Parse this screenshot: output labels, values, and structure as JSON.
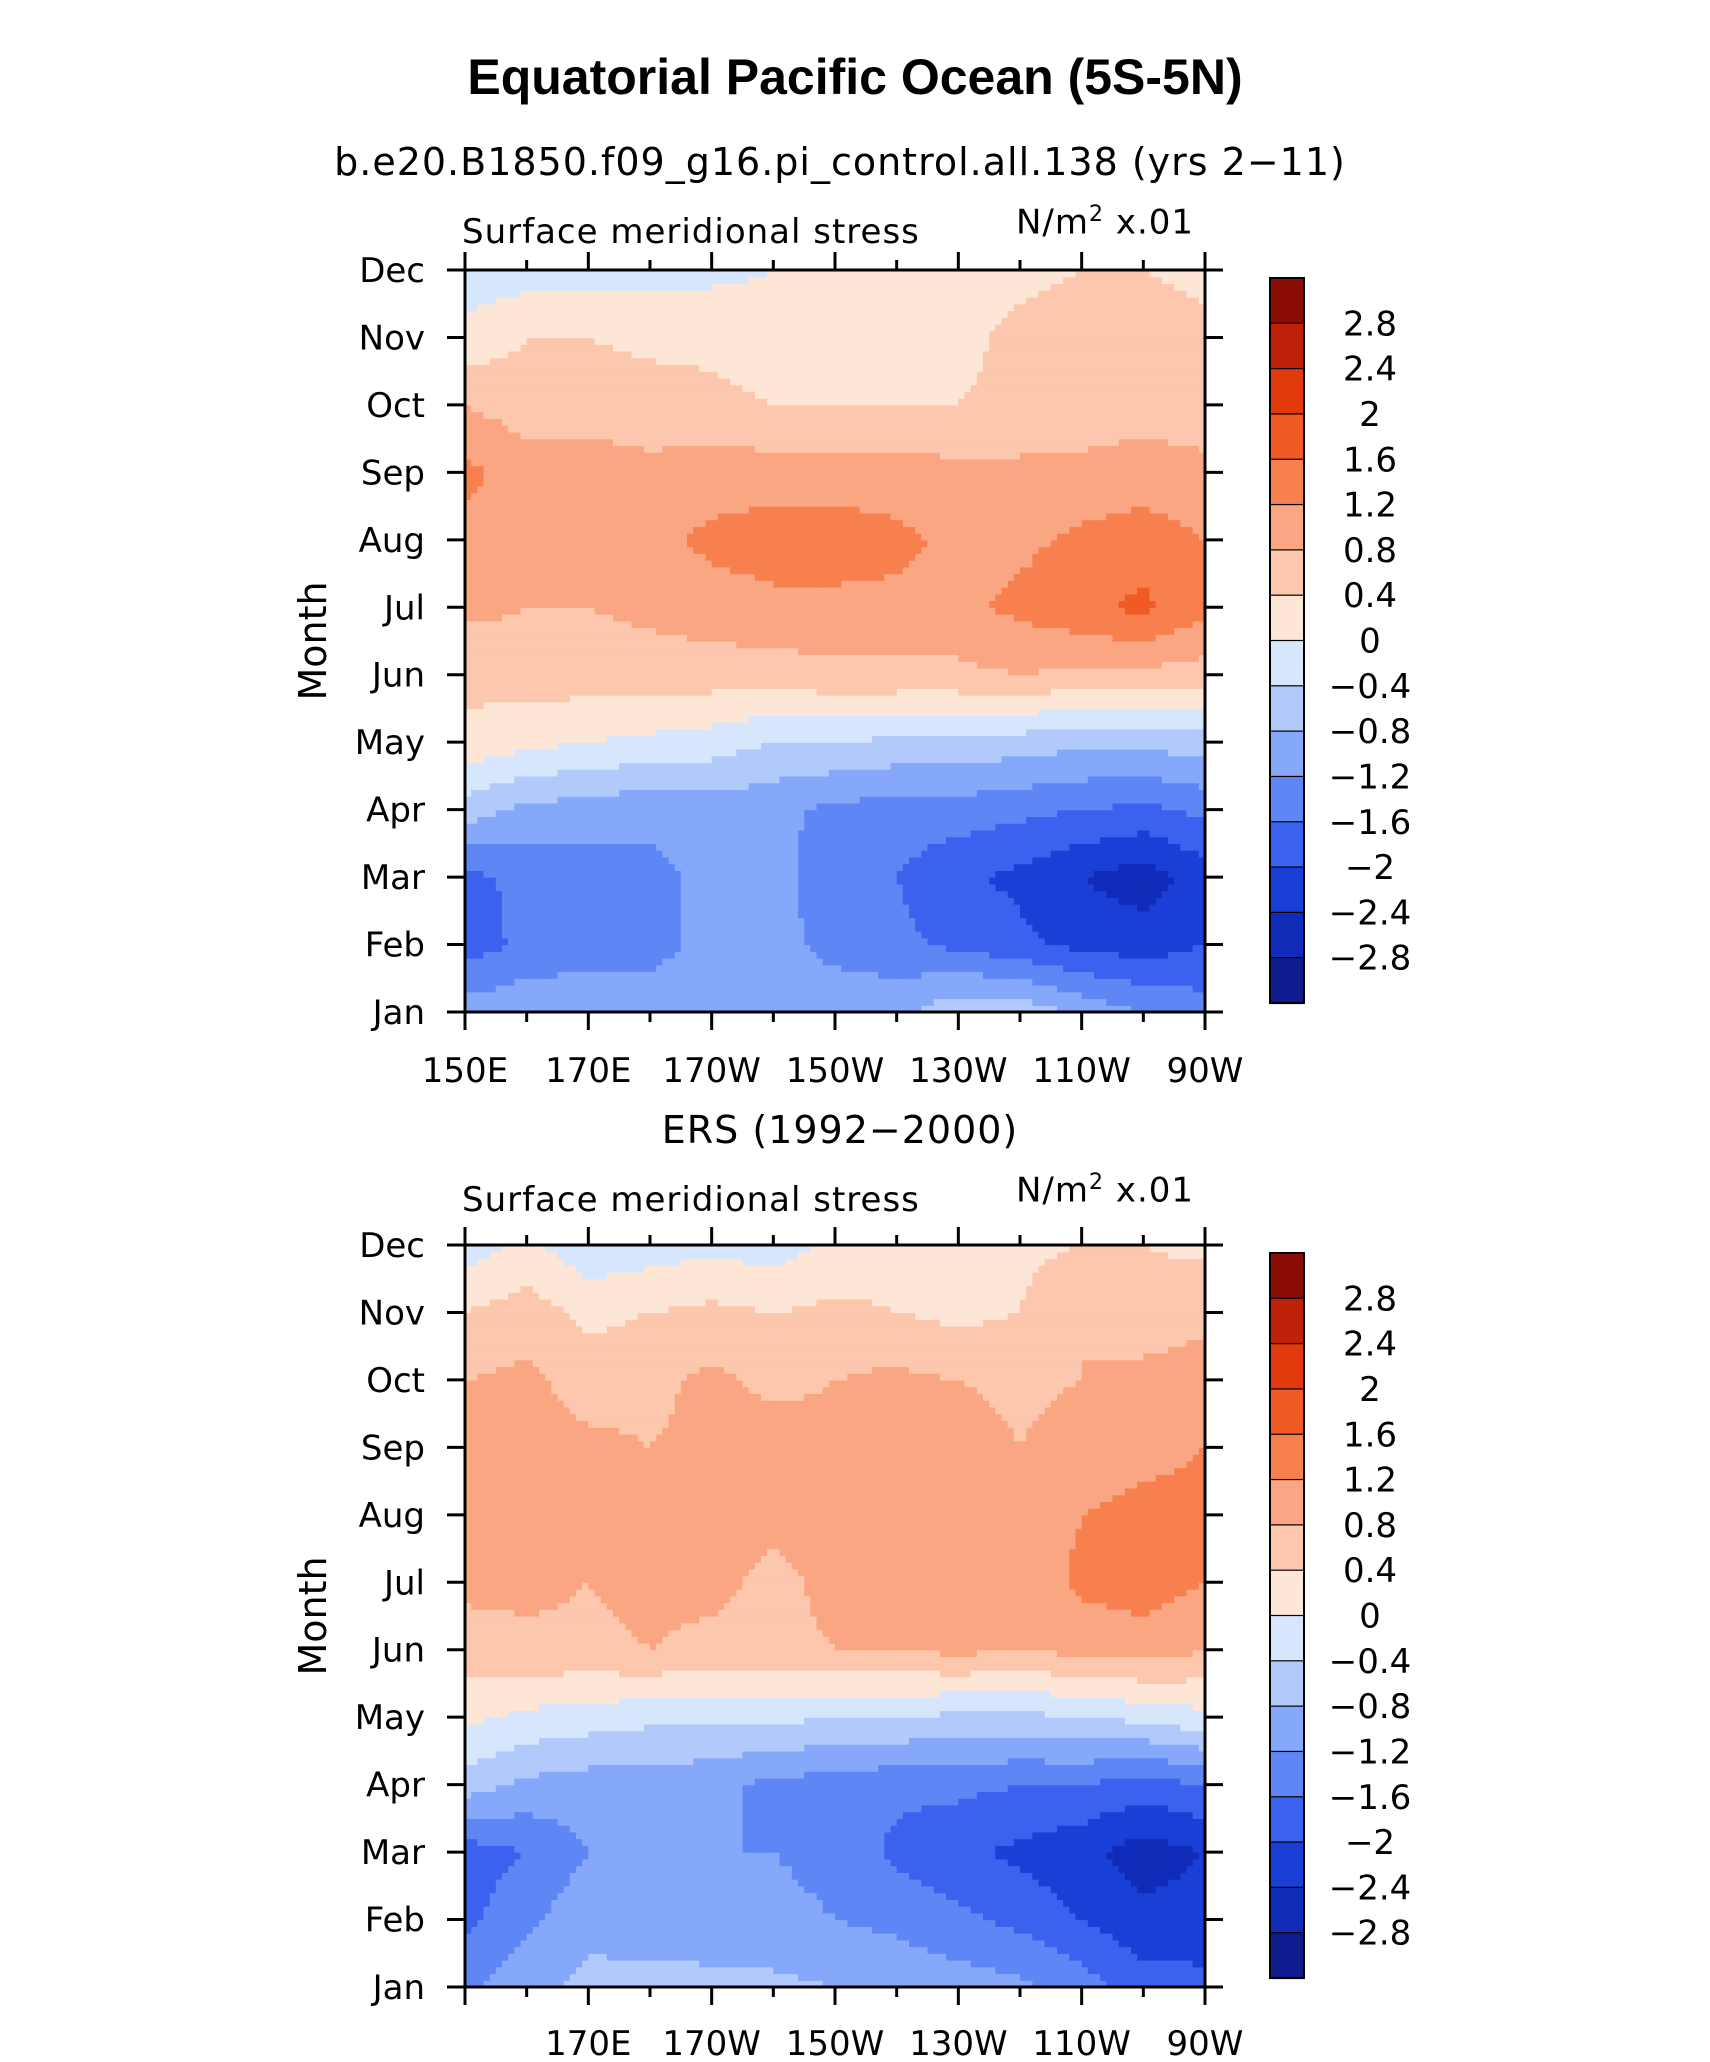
{
  "figure": {
    "title": "Equatorial Pacific Ocean (5S-5N)"
  },
  "colors": {
    "levels": [
      "-2.8",
      "-2.4",
      "-2",
      "-1.6",
      "-1.2",
      "-0.8",
      "-0.4",
      "0",
      "0.4",
      "0.8",
      "1.2",
      "1.6",
      "2",
      "2.4",
      "2.8"
    ],
    "fills": [
      "#0d1b8e",
      "#0f2bb8",
      "#1a3fd6",
      "#3b62ee",
      "#5f86f5",
      "#86a8fa",
      "#b2c9fb",
      "#d6e6fc",
      "#fde6d6",
      "#fcc7ac",
      "#fba683",
      "#f8804f",
      "#f05a24",
      "#e23a0c",
      "#bf2008",
      "#8c0b05"
    ]
  },
  "panels": [
    {
      "subtitle": "b.e20.B1850.f09_g16.pi_control.all.138 (yrs 2−11)",
      "left_label": "Surface meridional stress",
      "units": "N/m",
      "units_sup": "2",
      "units_scale": "x.01",
      "ylabel": "Month",
      "xticklabels": [
        "150E",
        "170E",
        "170W",
        "150W",
        "130W",
        "110W",
        "90W"
      ],
      "yticklabels": [
        "Jan",
        "Feb",
        "Mar",
        "Apr",
        "May",
        "Jun",
        "Jul",
        "Aug",
        "Sep",
        "Oct",
        "Nov",
        "Dec"
      ],
      "colorbar_labels": [
        "2.8",
        "2.4",
        "2",
        "1.6",
        "1.2",
        "0.8",
        "0.4",
        "0",
        "−0.4",
        "−0.8",
        "−1.2",
        "−1.6",
        "−2",
        "−2.4",
        "−2.8"
      ]
    },
    {
      "subtitle": "ERS (1992−2000)",
      "left_label": "Surface meridional stress",
      "units": "N/m",
      "units_sup": "2",
      "units_scale": "x.01",
      "ylabel": "Month",
      "xticklabels": [
        "170E",
        "170W",
        "150W",
        "130W",
        "110W",
        "90W"
      ],
      "yticklabels": [
        "Jan",
        "Feb",
        "Mar",
        "Apr",
        "May",
        "Jun",
        "Jul",
        "Aug",
        "Sep",
        "Oct",
        "Nov",
        "Dec"
      ],
      "colorbar_labels": [
        "2.8",
        "2.4",
        "2",
        "1.6",
        "1.2",
        "0.8",
        "0.4",
        "0",
        "−0.4",
        "−0.8",
        "−1.2",
        "−1.6",
        "−2",
        "−2.4",
        "−2.8"
      ]
    }
  ],
  "chart_data": [
    {
      "type": "heatmap",
      "title": "Surface meridional stress",
      "xlabel": "",
      "ylabel": "Month",
      "x": [
        "150E",
        "160E",
        "170E",
        "180",
        "170W",
        "160W",
        "150W",
        "140W",
        "130W",
        "120W",
        "110W",
        "100W",
        "90W"
      ],
      "y": [
        "Jan",
        "Feb",
        "Mar",
        "Apr",
        "May",
        "Jun",
        "Jul",
        "Aug",
        "Sep",
        "Oct",
        "Nov",
        "Dec"
      ],
      "values": [
        [
          -1.0,
          -0.9,
          -0.9,
          -0.9,
          -0.8,
          -0.8,
          -0.8,
          -0.9,
          -0.5,
          -0.5,
          -0.9,
          -1.2,
          -1.4
        ],
        [
          -1.8,
          -1.5,
          -1.4,
          -1.4,
          -1.0,
          -1.0,
          -1.4,
          -1.5,
          -1.7,
          -1.9,
          -2.1,
          -2.2,
          -2.0
        ],
        [
          -1.7,
          -1.5,
          -1.4,
          -1.3,
          -1.1,
          -1.0,
          -1.5,
          -1.6,
          -1.9,
          -2.1,
          -2.4,
          -2.6,
          -2.2
        ],
        [
          -0.6,
          -0.9,
          -1.0,
          -1.1,
          -1.0,
          -1.1,
          -1.3,
          -1.4,
          -1.4,
          -1.5,
          -1.6,
          -1.7,
          -1.5
        ],
        [
          0.3,
          0.1,
          0.0,
          -0.1,
          -0.2,
          -0.4,
          -0.4,
          -0.5,
          -0.5,
          -0.6,
          -0.7,
          -0.7,
          -0.6
        ],
        [
          0.5,
          0.6,
          0.6,
          0.6,
          0.6,
          0.6,
          0.7,
          0.7,
          0.7,
          0.8,
          0.7,
          0.7,
          0.6
        ],
        [
          0.9,
          0.8,
          0.8,
          0.9,
          1.0,
          1.1,
          1.1,
          1.1,
          1.1,
          1.3,
          1.5,
          1.7,
          1.3
        ],
        [
          1.1,
          1.0,
          1.0,
          1.1,
          1.3,
          1.4,
          1.4,
          1.3,
          1.1,
          1.1,
          1.3,
          1.4,
          1.2
        ],
        [
          1.3,
          1.0,
          1.0,
          0.9,
          1.0,
          1.0,
          1.0,
          1.0,
          0.9,
          0.9,
          0.9,
          1.0,
          0.9
        ],
        [
          0.8,
          0.6,
          0.6,
          0.6,
          0.5,
          0.4,
          0.4,
          0.4,
          0.4,
          0.5,
          0.6,
          0.6,
          0.6
        ],
        [
          0.1,
          0.4,
          0.4,
          0.3,
          0.3,
          0.2,
          0.2,
          0.3,
          0.3,
          0.5,
          0.6,
          0.6,
          0.5
        ],
        [
          -0.2,
          -0.2,
          -0.2,
          -0.1,
          -0.1,
          0.0,
          0.1,
          0.2,
          0.2,
          0.3,
          0.4,
          0.4,
          0.3
        ]
      ],
      "levels": [
        -2.8,
        -2.4,
        -2.0,
        -1.6,
        -1.2,
        -0.8,
        -0.4,
        0,
        0.4,
        0.8,
        1.2,
        1.6,
        2.0,
        2.4,
        2.8
      ],
      "xlim": [
        "150E",
        "90W"
      ],
      "ylim": [
        "Jan",
        "Dec"
      ]
    },
    {
      "type": "heatmap",
      "title": "Surface meridional stress",
      "xlabel": "",
      "ylabel": "Month",
      "x": [
        "150E",
        "160E",
        "170E",
        "180",
        "170W",
        "160W",
        "150W",
        "140W",
        "130W",
        "120W",
        "110W",
        "100W",
        "90W"
      ],
      "y": [
        "Jan",
        "Feb",
        "Mar",
        "Apr",
        "May",
        "Jun",
        "Jul",
        "Aug",
        "Sep",
        "Oct",
        "Nov",
        "Dec"
      ],
      "values": [
        [
          -1.3,
          -0.9,
          -0.7,
          -0.6,
          -0.7,
          -0.7,
          -0.8,
          -0.9,
          -1.0,
          -1.1,
          -1.4,
          -1.8,
          -1.9
        ],
        [
          -1.7,
          -1.3,
          -0.9,
          -1.1,
          -1.0,
          -1.1,
          -1.2,
          -1.3,
          -1.5,
          -1.7,
          -2.0,
          -2.3,
          -2.2
        ],
        [
          -1.8,
          -1.6,
          -1.2,
          -1.1,
          -1.2,
          -1.2,
          -1.3,
          -1.7,
          -1.9,
          -2.1,
          -2.3,
          -2.6,
          -2.4
        ],
        [
          -0.6,
          -0.9,
          -1.0,
          -1.0,
          -1.1,
          -1.3,
          -1.4,
          -1.5,
          -1.5,
          -1.6,
          -1.6,
          -1.8,
          -1.6
        ],
        [
          0.1,
          -0.1,
          -0.2,
          -0.3,
          -0.3,
          -0.3,
          -0.4,
          -0.4,
          -0.5,
          -0.5,
          -0.4,
          -0.3,
          -0.1
        ],
        [
          0.6,
          0.7,
          0.7,
          0.8,
          0.7,
          0.7,
          0.8,
          0.8,
          0.9,
          0.8,
          0.9,
          1.0,
          0.8
        ],
        [
          0.9,
          0.9,
          0.8,
          0.9,
          0.9,
          0.7,
          0.9,
          0.9,
          0.9,
          0.9,
          1.3,
          1.4,
          1.2
        ],
        [
          1.0,
          0.9,
          1.0,
          1.0,
          1.0,
          0.9,
          1.0,
          1.0,
          1.0,
          0.9,
          1.2,
          1.3,
          1.3
        ],
        [
          1.2,
          1.0,
          0.9,
          0.8,
          0.9,
          1.0,
          0.9,
          1.0,
          1.0,
          0.8,
          1.0,
          1.1,
          1.2
        ],
        [
          0.8,
          0.9,
          0.6,
          0.7,
          0.9,
          0.7,
          0.8,
          0.9,
          0.8,
          0.7,
          0.8,
          0.9,
          1.0
        ],
        [
          0.4,
          0.6,
          0.3,
          0.4,
          0.5,
          0.4,
          0.5,
          0.4,
          0.3,
          0.4,
          0.8,
          0.6,
          0.7
        ],
        [
          -0.2,
          0.1,
          -0.3,
          -0.2,
          -0.1,
          -0.2,
          0.1,
          0.2,
          0.2,
          0.3,
          0.4,
          0.4,
          0.3
        ]
      ],
      "levels": [
        -2.8,
        -2.4,
        -2.0,
        -1.6,
        -1.2,
        -0.8,
        -0.4,
        0,
        0.4,
        0.8,
        1.2,
        1.6,
        2.0,
        2.4,
        2.8
      ],
      "xlim": [
        "150E",
        "90W"
      ],
      "ylim": [
        "Jan",
        "Dec"
      ]
    }
  ]
}
